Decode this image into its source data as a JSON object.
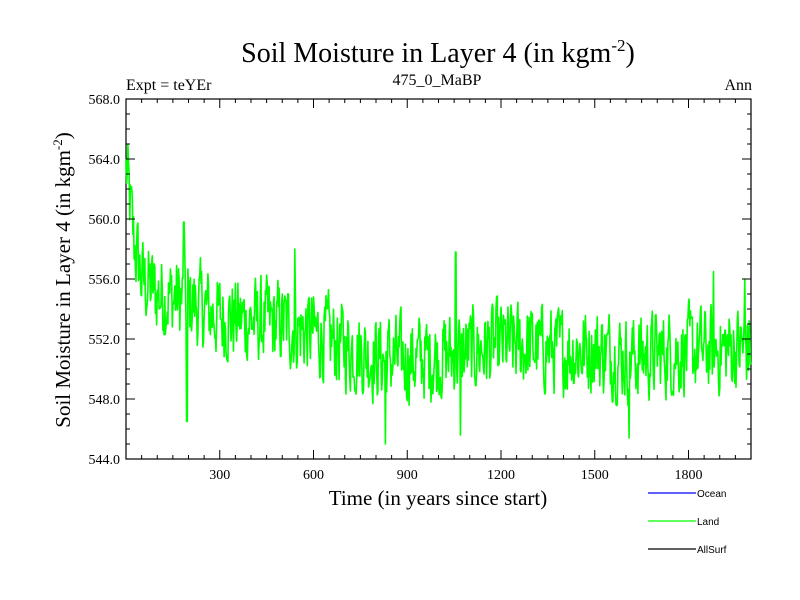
{
  "chart_data": {
    "type": "line",
    "title": "Soil Moisture in Layer 4 (in kgm",
    "title_superscript": "-2",
    "title_close": ")",
    "subtitle_left": "Expt = teYEr",
    "subtitle_center": "475_0_MaBP",
    "subtitle_right": "Ann",
    "xlabel": "Time (in years since start)",
    "ylabel": "Soil Moisture in Layer 4 (in kgm",
    "ylabel_superscript": "-2",
    "ylabel_close": ")",
    "xlim": [
      0,
      2000
    ],
    "ylim": [
      544.0,
      568.0
    ],
    "xticks": [
      300,
      600,
      900,
      1200,
      1500,
      1800
    ],
    "xtick_labels": [
      "300",
      "600",
      "900",
      "1200",
      "1500",
      "1800"
    ],
    "yticks": [
      544.0,
      548.0,
      552.0,
      556.0,
      560.0,
      564.0,
      568.0
    ],
    "ytick_labels": [
      "544.0",
      "548.0",
      "552.0",
      "556.0",
      "560.0",
      "564.0",
      "568.0"
    ],
    "legend": [
      {
        "name": "Ocean",
        "color": "#0000ff"
      },
      {
        "name": "Land",
        "color": "#00ff00"
      },
      {
        "name": "AllSurf",
        "color": "#000000"
      }
    ],
    "series": [
      {
        "name": "Land",
        "color": "#00ff00",
        "x_step": 25,
        "trend": [
          [
            0,
            563.5
          ],
          [
            25,
            558.5
          ],
          [
            50,
            556.0
          ],
          [
            100,
            555.0
          ],
          [
            200,
            554.5
          ],
          [
            300,
            553.5
          ],
          [
            400,
            553.2
          ],
          [
            500,
            553.0
          ],
          [
            600,
            552.4
          ],
          [
            700,
            551.5
          ],
          [
            800,
            550.8
          ],
          [
            900,
            550.6
          ],
          [
            1000,
            550.8
          ],
          [
            1100,
            551.2
          ],
          [
            1200,
            551.6
          ],
          [
            1300,
            551.5
          ],
          [
            1400,
            551.2
          ],
          [
            1500,
            551.3
          ],
          [
            1600,
            550.8
          ],
          [
            1700,
            551.0
          ],
          [
            1800,
            551.2
          ],
          [
            1900,
            551.3
          ],
          [
            2000,
            551.5
          ]
        ],
        "noise_amplitude": 1.6,
        "peaks": [
          [
            0,
            564.0
          ],
          [
            185,
            559.8
          ],
          [
            540,
            558.0
          ],
          [
            1055,
            557.8
          ],
          [
            1880,
            556.5
          ],
          [
            1980,
            556.0
          ]
        ],
        "troughs": [
          [
            195,
            546.5
          ],
          [
            830,
            545.0
          ],
          [
            1070,
            545.6
          ],
          [
            1610,
            545.4
          ]
        ]
      }
    ]
  }
}
